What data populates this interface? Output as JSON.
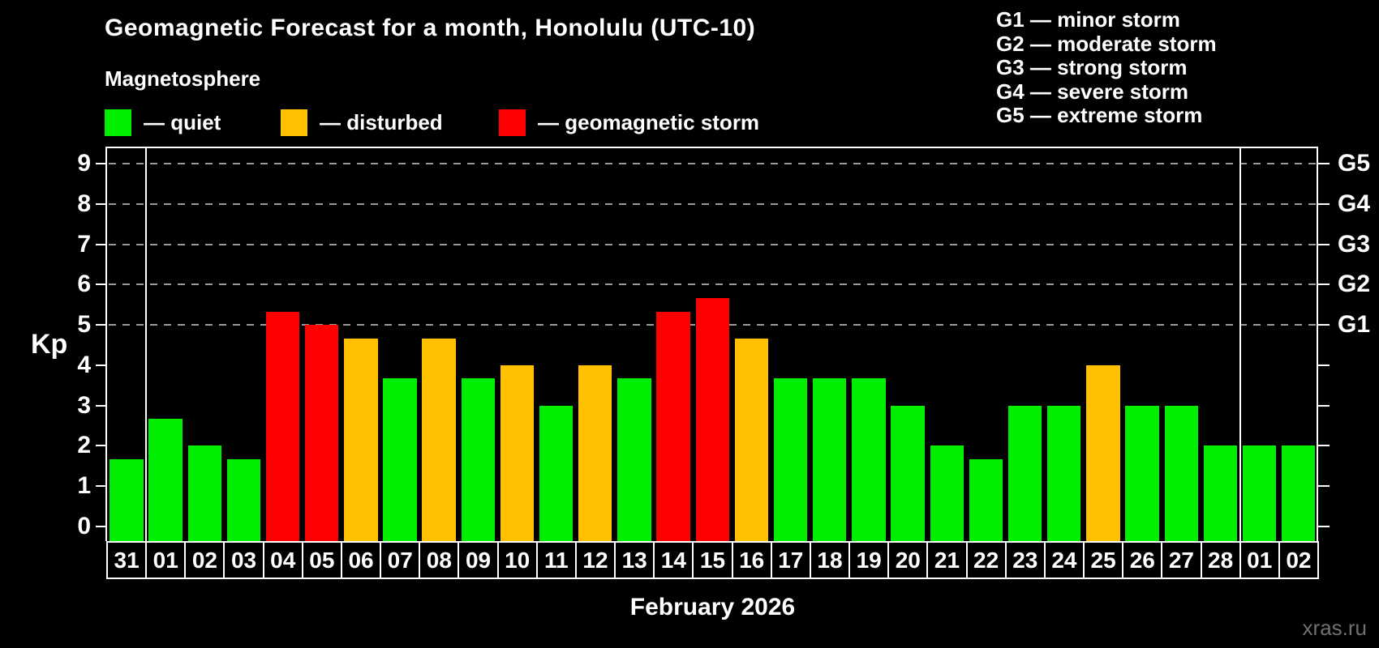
{
  "title": "Geomagnetic Forecast for a month, Honolulu (UTC-10)",
  "subtitle": "Magnetosphere",
  "legend": {
    "items": [
      {
        "label": "— quiet",
        "level": "quiet"
      },
      {
        "label": "— disturbed",
        "level": "disturbed"
      },
      {
        "label": "— geomagnetic storm",
        "level": "storm"
      }
    ]
  },
  "storm_scale_legend": {
    "items": [
      {
        "label": "G1 — minor storm"
      },
      {
        "label": "G2 — moderate storm"
      },
      {
        "label": "G3 — strong storm"
      },
      {
        "label": "G4 — severe storm"
      },
      {
        "label": "G5 — extreme storm"
      }
    ]
  },
  "colors": {
    "quiet": "#00ee00",
    "disturbed": "#ffc000",
    "storm": "#ff0000",
    "grid": "#9a9a9a",
    "axis": "#ffffff",
    "watermark": "#707070"
  },
  "axes": {
    "y_label": "Kp",
    "y_ticks": [
      "0",
      "1",
      "2",
      "3",
      "4",
      "5",
      "6",
      "7",
      "8",
      "9"
    ],
    "g_labels": [
      {
        "kp": 5,
        "label": "G1"
      },
      {
        "kp": 6,
        "label": "G2"
      },
      {
        "kp": 7,
        "label": "G3"
      },
      {
        "kp": 8,
        "label": "G4"
      },
      {
        "kp": 9,
        "label": "G5"
      }
    ],
    "x_label": "February 2026"
  },
  "watermark": "xras.ru",
  "chart_data": {
    "type": "bar",
    "title": "Geomagnetic Forecast for a month, Honolulu (UTC-10)",
    "ylabel": "Kp",
    "xlabel": "February 2026",
    "ylim": [
      0,
      9
    ],
    "grid_levels": [
      5,
      6,
      7,
      8,
      9
    ],
    "month_separator_indices": [
      1,
      29
    ],
    "categories": [
      "31",
      "01",
      "02",
      "03",
      "04",
      "05",
      "06",
      "07",
      "08",
      "09",
      "10",
      "11",
      "12",
      "13",
      "14",
      "15",
      "16",
      "17",
      "18",
      "19",
      "20",
      "21",
      "22",
      "23",
      "24",
      "25",
      "26",
      "27",
      "28",
      "01",
      "02"
    ],
    "values": [
      1.67,
      2.67,
      2,
      1.67,
      5.33,
      5,
      4.67,
      3.67,
      4.67,
      3.67,
      4,
      3,
      4,
      3.67,
      5.33,
      5.67,
      4.67,
      3.67,
      3.67,
      3.67,
      3,
      2,
      1.67,
      3,
      3,
      4,
      3,
      3,
      2,
      2,
      2
    ],
    "statuses": [
      "quiet",
      "quiet",
      "quiet",
      "quiet",
      "storm",
      "storm",
      "disturbed",
      "quiet",
      "disturbed",
      "quiet",
      "disturbed",
      "quiet",
      "disturbed",
      "quiet",
      "storm",
      "storm",
      "disturbed",
      "quiet",
      "quiet",
      "quiet",
      "quiet",
      "quiet",
      "quiet",
      "quiet",
      "quiet",
      "disturbed",
      "quiet",
      "quiet",
      "quiet",
      "quiet",
      "quiet"
    ]
  }
}
